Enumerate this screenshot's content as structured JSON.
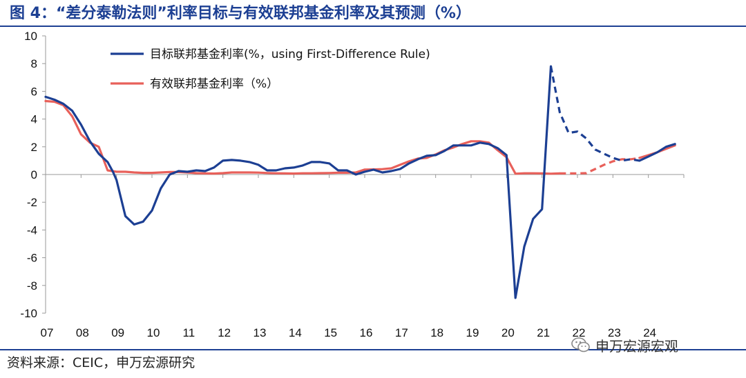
{
  "title": "图 4：“差分泰勒法则”利率目标与有效联邦基金利率及其预测（%）",
  "source": "资料来源：CEIC，申万宏源研究",
  "watermark": "申万宏源宏观",
  "chart_data": {
    "type": "line",
    "ylim": [
      -10,
      10
    ],
    "yticks": [
      -10,
      -8,
      -6,
      -4,
      -2,
      0,
      2,
      4,
      6,
      8,
      10
    ],
    "xlim": [
      2007,
      2025
    ],
    "xticks": [
      "07",
      "08",
      "09",
      "10",
      "11",
      "12",
      "13",
      "14",
      "15",
      "16",
      "17",
      "18",
      "19",
      "20",
      "21",
      "22",
      "23",
      "24"
    ],
    "grid": false,
    "legend_position": "top-left",
    "series": [
      {
        "name": "目标联邦基金利率(%，using First-Difference Rule)",
        "color": "#1c3f93",
        "actual": [
          [
            2007.0,
            5.6
          ],
          [
            2007.25,
            5.4
          ],
          [
            2007.5,
            5.1
          ],
          [
            2007.75,
            4.6
          ],
          [
            2008.0,
            3.6
          ],
          [
            2008.25,
            2.4
          ],
          [
            2008.5,
            1.5
          ],
          [
            2008.75,
            0.9
          ],
          [
            2008.9,
            0.2
          ],
          [
            2009.0,
            -0.4
          ],
          [
            2009.25,
            -3.0
          ],
          [
            2009.5,
            -3.6
          ],
          [
            2009.75,
            -3.4
          ],
          [
            2010.0,
            -2.6
          ],
          [
            2010.25,
            -1.0
          ],
          [
            2010.5,
            0.0
          ],
          [
            2010.75,
            0.25
          ],
          [
            2011.0,
            0.2
          ],
          [
            2011.25,
            0.3
          ],
          [
            2011.5,
            0.25
          ],
          [
            2011.75,
            0.5
          ],
          [
            2012.0,
            1.0
          ],
          [
            2012.25,
            1.05
          ],
          [
            2012.5,
            1.0
          ],
          [
            2012.75,
            0.9
          ],
          [
            2013.0,
            0.7
          ],
          [
            2013.25,
            0.3
          ],
          [
            2013.5,
            0.3
          ],
          [
            2013.75,
            0.45
          ],
          [
            2014.0,
            0.5
          ],
          [
            2014.25,
            0.65
          ],
          [
            2014.5,
            0.9
          ],
          [
            2014.75,
            0.9
          ],
          [
            2015.0,
            0.8
          ],
          [
            2015.25,
            0.3
          ],
          [
            2015.5,
            0.3
          ],
          [
            2015.75,
            0.0
          ],
          [
            2016.0,
            0.2
          ],
          [
            2016.25,
            0.35
          ],
          [
            2016.5,
            0.15
          ],
          [
            2016.75,
            0.25
          ],
          [
            2017.0,
            0.4
          ],
          [
            2017.25,
            0.8
          ],
          [
            2017.5,
            1.1
          ],
          [
            2017.75,
            1.35
          ],
          [
            2018.0,
            1.4
          ],
          [
            2018.25,
            1.7
          ],
          [
            2018.5,
            2.1
          ],
          [
            2018.75,
            2.1
          ],
          [
            2019.0,
            2.1
          ],
          [
            2019.25,
            2.3
          ],
          [
            2019.5,
            2.2
          ],
          [
            2019.75,
            1.9
          ],
          [
            2020.0,
            1.4
          ],
          [
            2020.25,
            -8.9
          ],
          [
            2020.5,
            -5.2
          ],
          [
            2020.75,
            -3.2
          ],
          [
            2021.0,
            -2.5
          ],
          [
            2021.25,
            7.8
          ]
        ],
        "forecast": [
          [
            2021.25,
            7.8
          ],
          [
            2021.5,
            4.5
          ],
          [
            2021.75,
            3.0
          ],
          [
            2022.0,
            3.1
          ],
          [
            2022.25,
            2.6
          ],
          [
            2022.5,
            1.8
          ],
          [
            2022.75,
            1.5
          ],
          [
            2023.0,
            1.2
          ],
          [
            2023.25,
            1.0
          ],
          [
            2023.5,
            1.1
          ],
          [
            2023.75,
            1.0
          ]
        ],
        "extension": [
          [
            2023.75,
            1.0
          ],
          [
            2024.0,
            1.3
          ],
          [
            2024.25,
            1.6
          ],
          [
            2024.5,
            2.0
          ],
          [
            2024.75,
            2.2
          ]
        ]
      },
      {
        "name": "有效联邦基金利率（%）",
        "color": "#e8605a",
        "actual": [
          [
            2007.0,
            5.3
          ],
          [
            2007.25,
            5.25
          ],
          [
            2007.5,
            5.0
          ],
          [
            2007.75,
            4.2
          ],
          [
            2008.0,
            2.9
          ],
          [
            2008.25,
            2.3
          ],
          [
            2008.5,
            2.0
          ],
          [
            2008.75,
            0.3
          ],
          [
            2009.0,
            0.2
          ],
          [
            2009.25,
            0.2
          ],
          [
            2009.5,
            0.15
          ],
          [
            2009.75,
            0.12
          ],
          [
            2010.0,
            0.12
          ],
          [
            2010.25,
            0.15
          ],
          [
            2010.5,
            0.18
          ],
          [
            2010.75,
            0.18
          ],
          [
            2011.0,
            0.15
          ],
          [
            2011.25,
            0.1
          ],
          [
            2011.5,
            0.08
          ],
          [
            2011.75,
            0.07
          ],
          [
            2012.0,
            0.1
          ],
          [
            2012.25,
            0.15
          ],
          [
            2012.5,
            0.15
          ],
          [
            2012.75,
            0.15
          ],
          [
            2013.0,
            0.14
          ],
          [
            2013.25,
            0.11
          ],
          [
            2013.5,
            0.09
          ],
          [
            2013.75,
            0.08
          ],
          [
            2014.0,
            0.07
          ],
          [
            2014.25,
            0.09
          ],
          [
            2014.5,
            0.09
          ],
          [
            2014.75,
            0.1
          ],
          [
            2015.0,
            0.11
          ],
          [
            2015.25,
            0.13
          ],
          [
            2015.5,
            0.13
          ],
          [
            2015.75,
            0.15
          ],
          [
            2016.0,
            0.36
          ],
          [
            2016.25,
            0.37
          ],
          [
            2016.5,
            0.39
          ],
          [
            2016.75,
            0.45
          ],
          [
            2017.0,
            0.7
          ],
          [
            2017.25,
            0.95
          ],
          [
            2017.5,
            1.15
          ],
          [
            2017.75,
            1.2
          ],
          [
            2018.0,
            1.45
          ],
          [
            2018.25,
            1.75
          ],
          [
            2018.5,
            1.95
          ],
          [
            2018.75,
            2.2
          ],
          [
            2019.0,
            2.4
          ],
          [
            2019.25,
            2.4
          ],
          [
            2019.5,
            2.3
          ],
          [
            2019.75,
            1.75
          ],
          [
            2020.0,
            1.25
          ],
          [
            2020.25,
            0.06
          ],
          [
            2020.5,
            0.09
          ],
          [
            2020.75,
            0.09
          ],
          [
            2021.0,
            0.08
          ],
          [
            2021.25,
            0.06
          ],
          [
            2021.5,
            0.08
          ]
        ],
        "forecast": [
          [
            2021.5,
            0.08
          ],
          [
            2022.0,
            0.08
          ],
          [
            2022.25,
            0.1
          ],
          [
            2022.5,
            0.4
          ],
          [
            2022.75,
            0.7
          ],
          [
            2023.0,
            0.95
          ],
          [
            2023.25,
            1.1
          ],
          [
            2023.5,
            1.1
          ],
          [
            2023.75,
            1.2
          ]
        ],
        "extension": [
          [
            2023.75,
            1.2
          ],
          [
            2024.0,
            1.4
          ],
          [
            2024.25,
            1.6
          ],
          [
            2024.5,
            1.85
          ],
          [
            2024.75,
            2.1
          ]
        ]
      }
    ]
  }
}
